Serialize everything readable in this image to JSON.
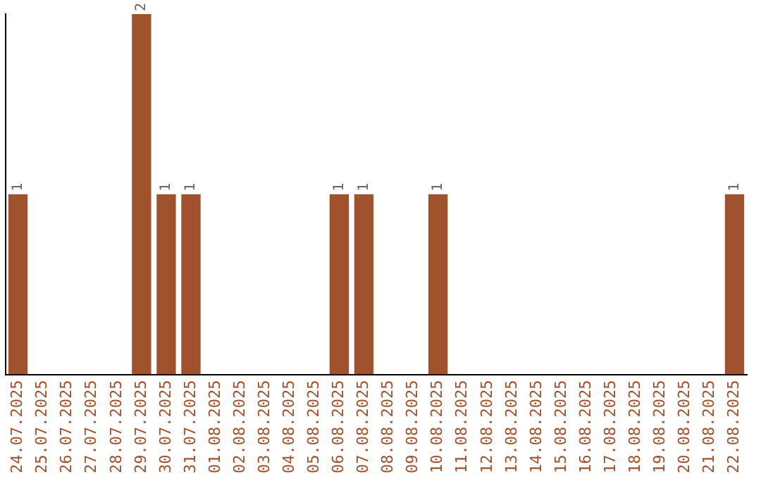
{
  "chart_data": {
    "type": "bar",
    "categories": [
      "24.07.2025",
      "25.07.2025",
      "26.07.2025",
      "27.07.2025",
      "28.07.2025",
      "29.07.2025",
      "30.07.2025",
      "31.07.2025",
      "01.08.2025",
      "02.08.2025",
      "03.08.2025",
      "04.08.2025",
      "05.08.2025",
      "06.08.2025",
      "07.08.2025",
      "08.08.2025",
      "09.08.2025",
      "10.08.2025",
      "11.08.2025",
      "12.08.2025",
      "13.08.2025",
      "14.08.2025",
      "15.08.2025",
      "16.08.2025",
      "17.08.2025",
      "18.08.2025",
      "19.08.2025",
      "20.08.2025",
      "21.08.2025",
      "22.08.2025"
    ],
    "values": [
      1,
      0,
      0,
      0,
      0,
      2,
      1,
      1,
      0,
      0,
      0,
      0,
      0,
      1,
      1,
      0,
      0,
      1,
      0,
      0,
      0,
      0,
      0,
      0,
      0,
      0,
      0,
      0,
      0,
      1
    ],
    "value_labels": [
      "1",
      null,
      null,
      null,
      null,
      "2",
      "1",
      "1",
      null,
      null,
      null,
      null,
      null,
      "1",
      "1",
      null,
      null,
      "1",
      null,
      null,
      null,
      null,
      null,
      null,
      null,
      null,
      null,
      null,
      null,
      "1"
    ],
    "color": "#a0522d",
    "tick_labels": "x",
    "grid": false,
    "legend": false
  }
}
